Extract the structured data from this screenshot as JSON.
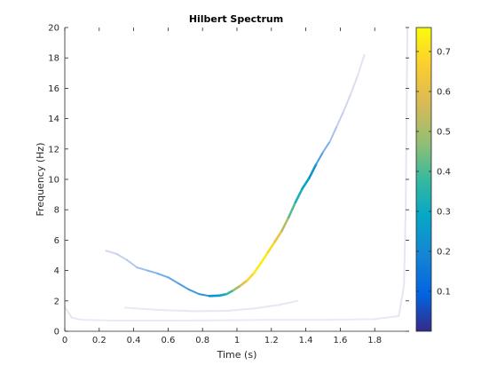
{
  "chart_data": {
    "type": "heatmap",
    "title": "Hilbert Spectrum",
    "xlabel": "Time (s)",
    "ylabel": "Frequency (Hz)",
    "xlim": [
      0,
      2
    ],
    "ylim": [
      0,
      20
    ],
    "xticks": [
      0,
      0.2,
      0.4,
      0.6,
      0.8,
      1,
      1.2,
      1.4,
      1.6,
      1.8
    ],
    "xtick_labels": [
      "0",
      "0.2",
      "0.4",
      "0.6",
      "0.8",
      "1",
      "1.2",
      "1.4",
      "1.6",
      "1.8"
    ],
    "yticks": [
      0,
      2,
      4,
      6,
      8,
      10,
      12,
      14,
      16,
      18,
      20
    ],
    "ytick_labels": [
      "0",
      "2",
      "4",
      "6",
      "8",
      "10",
      "12",
      "14",
      "16",
      "18",
      "20"
    ],
    "colorbar": {
      "range": [
        0,
        0.76
      ],
      "ticks": [
        0.1,
        0.2,
        0.3,
        0.4,
        0.5,
        0.6,
        0.7
      ],
      "tick_labels": [
        "0.1",
        "0.2",
        "0.3",
        "0.4",
        "0.5",
        "0.6",
        "0.7"
      ],
      "colormap": "parula",
      "placement": "right"
    },
    "grid": false,
    "series": [
      {
        "points": [
          [
            0.24,
            5.3,
            0.03
          ],
          [
            0.3,
            5.1,
            0.04
          ],
          [
            0.36,
            4.7,
            0.05
          ],
          [
            0.42,
            4.2,
            0.07
          ],
          [
            0.48,
            4.0,
            0.09
          ],
          [
            0.54,
            3.8,
            0.11
          ],
          [
            0.6,
            3.55,
            0.13
          ],
          [
            0.66,
            3.15,
            0.15
          ],
          [
            0.72,
            2.75,
            0.17
          ],
          [
            0.78,
            2.45,
            0.19
          ],
          [
            0.84,
            2.32,
            0.21
          ],
          [
            0.9,
            2.35,
            0.26
          ],
          [
            0.94,
            2.45,
            0.33
          ],
          [
            0.98,
            2.7,
            0.42
          ],
          [
            1.02,
            3.0,
            0.55
          ],
          [
            1.06,
            3.35,
            0.66
          ],
          [
            1.1,
            3.85,
            0.72
          ],
          [
            1.14,
            4.5,
            0.74
          ],
          [
            1.18,
            5.2,
            0.72
          ],
          [
            1.22,
            5.9,
            0.66
          ],
          [
            1.26,
            6.6,
            0.58
          ],
          [
            1.3,
            7.5,
            0.46
          ],
          [
            1.34,
            8.5,
            0.36
          ],
          [
            1.38,
            9.4,
            0.3
          ],
          [
            1.42,
            10.1,
            0.26
          ],
          [
            1.46,
            11.0,
            0.2
          ],
          [
            1.5,
            11.8,
            0.14
          ],
          [
            1.54,
            12.5,
            0.09
          ],
          [
            1.58,
            13.5,
            0.06
          ],
          [
            1.62,
            14.5,
            0.04
          ],
          [
            1.66,
            15.6,
            0.03
          ],
          [
            1.7,
            16.8,
            0.02
          ],
          [
            1.74,
            18.2,
            0.015
          ]
        ]
      },
      {
        "points": [
          [
            0.0,
            1.6,
            0.015
          ],
          [
            0.04,
            0.9,
            0.015
          ],
          [
            0.1,
            0.75,
            0.01
          ],
          [
            0.3,
            0.7,
            0.01
          ],
          [
            0.6,
            0.7,
            0.01
          ],
          [
            0.9,
            0.72,
            0.01
          ],
          [
            1.2,
            0.75,
            0.01
          ],
          [
            1.5,
            0.75,
            0.01
          ],
          [
            1.8,
            0.8,
            0.01
          ],
          [
            1.94,
            1.0,
            0.015
          ],
          [
            1.97,
            3.0,
            0.015
          ],
          [
            1.98,
            8.0,
            0.015
          ],
          [
            1.985,
            14.0,
            0.015
          ],
          [
            1.99,
            20.0,
            0.015
          ]
        ]
      },
      {
        "points": [
          [
            0.35,
            1.55,
            0.01
          ],
          [
            0.55,
            1.4,
            0.012
          ],
          [
            0.75,
            1.32,
            0.012
          ],
          [
            0.95,
            1.35,
            0.012
          ],
          [
            1.1,
            1.5,
            0.012
          ],
          [
            1.25,
            1.75,
            0.015
          ],
          [
            1.35,
            2.0,
            0.012
          ]
        ]
      }
    ]
  }
}
